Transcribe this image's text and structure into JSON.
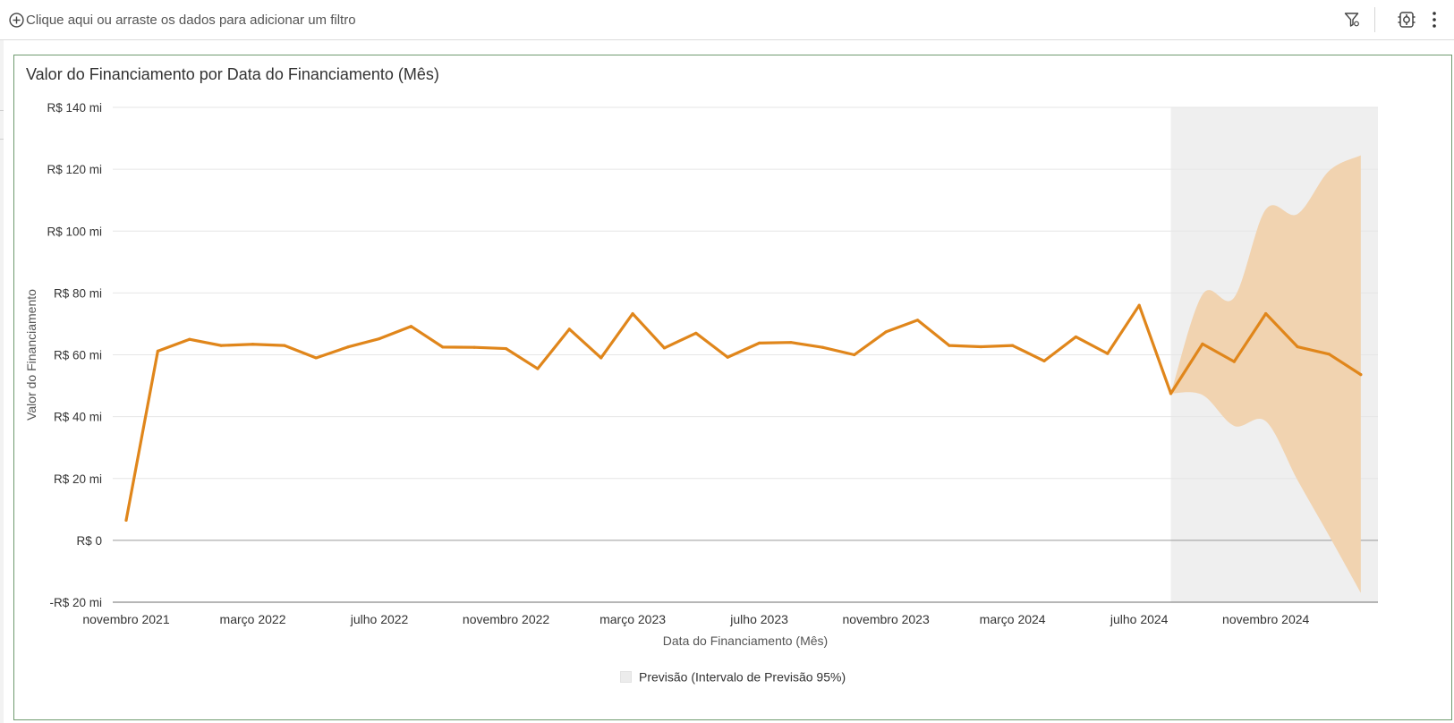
{
  "filter_bar": {
    "placeholder": "Clique aqui ou arraste os dados para adicionar um filtro",
    "icons": [
      "add-circle-icon",
      "filter-funnel-icon",
      "settings-icon",
      "more-vertical-icon"
    ]
  },
  "chart_data": {
    "type": "line",
    "title": "Valor do Financiamento por Data do Financiamento (Mês)",
    "xlabel": "Data do Financiamento (Mês)",
    "ylabel": "Valor do Financiamento",
    "ylim": [
      -20,
      140
    ],
    "y_ticks": [
      {
        "value": 140,
        "label": "R$ 140 mi"
      },
      {
        "value": 120,
        "label": "R$ 120 mi"
      },
      {
        "value": 100,
        "label": "R$ 100 mi"
      },
      {
        "value": 80,
        "label": "R$ 80 mi"
      },
      {
        "value": 60,
        "label": "R$ 60 mi"
      },
      {
        "value": 40,
        "label": "R$ 40 mi"
      },
      {
        "value": 20,
        "label": "R$ 20 mi"
      },
      {
        "value": 0,
        "label": "R$ 0"
      },
      {
        "value": -20,
        "label": "-R$ 20 mi"
      }
    ],
    "x_ticks": [
      {
        "date": "2021-11",
        "label": "novembro 2021"
      },
      {
        "date": "2022-03",
        "label": "março 2022"
      },
      {
        "date": "2022-07",
        "label": "julho 2022"
      },
      {
        "date": "2022-11",
        "label": "novembro 2022"
      },
      {
        "date": "2023-03",
        "label": "março 2023"
      },
      {
        "date": "2023-07",
        "label": "julho 2023"
      },
      {
        "date": "2023-11",
        "label": "novembro 2023"
      },
      {
        "date": "2024-03",
        "label": "março 2024"
      },
      {
        "date": "2024-07",
        "label": "julho 2024"
      },
      {
        "date": "2024-11",
        "label": "novembro 2024"
      }
    ],
    "series": [
      {
        "color": "#e0861b",
        "x": [
          "2021-11",
          "2021-12",
          "2022-01",
          "2022-02",
          "2022-03",
          "2022-04",
          "2022-05",
          "2022-06",
          "2022-07",
          "2022-08",
          "2022-09",
          "2022-10",
          "2022-11",
          "2022-12",
          "2023-01",
          "2023-02",
          "2023-03",
          "2023-04",
          "2023-05",
          "2023-06",
          "2023-07",
          "2023-08",
          "2023-09",
          "2023-10",
          "2023-11",
          "2023-12",
          "2024-01",
          "2024-02",
          "2024-03",
          "2024-04",
          "2024-05",
          "2024-06",
          "2024-07",
          "2024-08"
        ],
        "values": [
          6.5,
          61.2,
          65.0,
          63.0,
          63.4,
          63.0,
          59.0,
          62.5,
          65.2,
          69.2,
          62.5,
          62.4,
          62.0,
          55.5,
          68.3,
          59.0,
          73.3,
          62.2,
          67.0,
          59.2,
          63.8,
          64.0,
          62.4,
          60.0,
          67.4,
          71.2,
          63.0,
          62.6,
          63.0,
          58.0,
          65.8,
          60.4,
          76.0,
          47.5
        ]
      }
    ],
    "forecast": {
      "legend_label": "Previsão (Intervalo de Previsão 95%)",
      "region_start": "2024-08",
      "region_fill": "#efefef",
      "band_color": "#f1d3b0",
      "x": [
        "2024-08",
        "2024-09",
        "2024-10",
        "2024-11",
        "2024-12",
        "2025-01",
        "2025-02"
      ],
      "values": [
        47.5,
        63.5,
        57.8,
        73.3,
        62.6,
        60.2,
        53.6
      ],
      "lower": [
        47.5,
        47.0,
        37.0,
        38.5,
        19.5,
        1.5,
        -17.0
      ],
      "upper": [
        47.5,
        79.5,
        78.5,
        107.0,
        105.5,
        119.5,
        124.5
      ]
    }
  }
}
